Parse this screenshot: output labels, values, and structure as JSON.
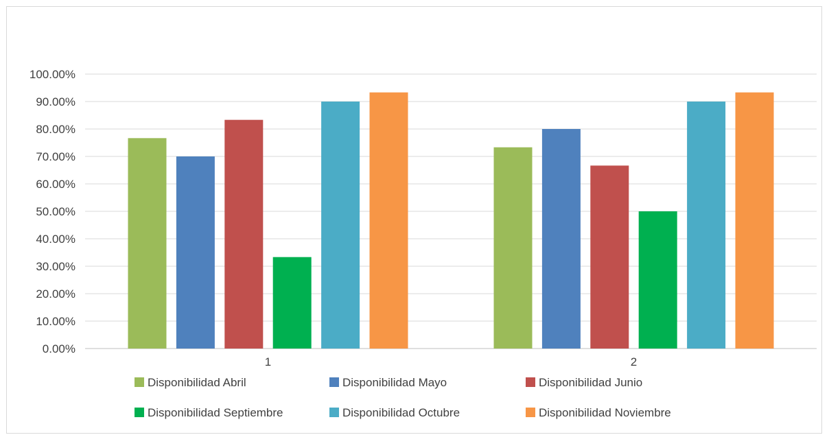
{
  "chart_data": {
    "type": "bar",
    "categories": [
      "1",
      "2"
    ],
    "series": [
      {
        "name": "Disponibilidad Abril",
        "values": [
          76.67,
          73.33
        ],
        "color": "#9BBB59"
      },
      {
        "name": "Disponibilidad Mayo",
        "values": [
          70.0,
          80.0
        ],
        "color": "#4F81BD"
      },
      {
        "name": "Disponibilidad Junio",
        "values": [
          83.33,
          66.67
        ],
        "color": "#C0504D"
      },
      {
        "name": "Disponibilidad Septiembre",
        "values": [
          33.33,
          50.0
        ],
        "color": "#00B050"
      },
      {
        "name": "Disponibilidad Octubre",
        "values": [
          90.0,
          90.0
        ],
        "color": "#4BACC6"
      },
      {
        "name": "Disponibilidad Noviembre",
        "values": [
          93.33,
          93.33
        ],
        "color": "#F79646"
      }
    ],
    "title": "",
    "xlabel": "",
    "ylabel": "",
    "ylim": [
      0,
      100
    ],
    "yticks": [
      "0.00%",
      "10.00%",
      "20.00%",
      "30.00%",
      "40.00%",
      "50.00%",
      "60.00%",
      "70.00%",
      "80.00%",
      "90.00%",
      "100.00%"
    ],
    "grid": true,
    "legend_position": "bottom"
  }
}
